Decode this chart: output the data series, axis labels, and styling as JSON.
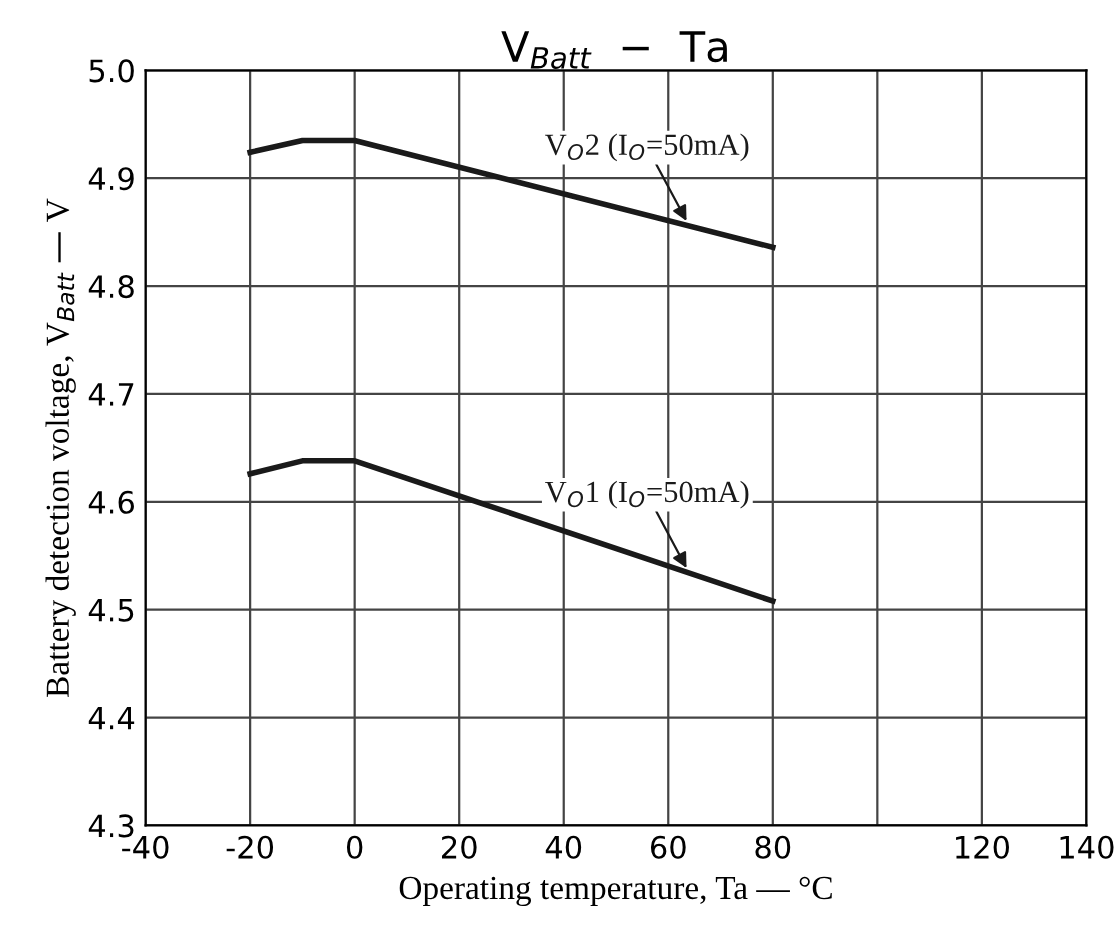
{
  "chart_data": {
    "type": "line",
    "title": "V$_{Batt}$  −  Ta",
    "xlabel": "Operating temperature, Ta — °C",
    "ylabel": "Battery detection voltage, V$_{Batt}$ — V",
    "x": [
      -20,
      -10,
      0,
      80
    ],
    "series": [
      {
        "name": "V$_{O}$2 (I$_{O}$=50mA)",
        "color": "#1a1a1a",
        "values": [
          4.924,
          4.935,
          4.935,
          4.836
        ]
      },
      {
        "name": "V$_{O}$1 (I$_{O}$=50mA)",
        "color": "#1a1a1a",
        "values": [
          4.626,
          4.638,
          4.638,
          4.508
        ]
      }
    ],
    "xlim": [
      -40,
      140
    ],
    "xticks": [
      -40,
      -20,
      0,
      20,
      40,
      60,
      80,
      {
        "value": 100,
        "label": null
      },
      120,
      140
    ],
    "ylim": [
      4.3,
      5.0
    ],
    "yticks": [
      4.3,
      4.4,
      4.5,
      4.6,
      4.7,
      4.8,
      4.9,
      {
        "value": 5,
        "label": "5.0"
      }
    ],
    "grid": true,
    "legend": false,
    "marker": "none",
    "line_style": "solid"
  }
}
